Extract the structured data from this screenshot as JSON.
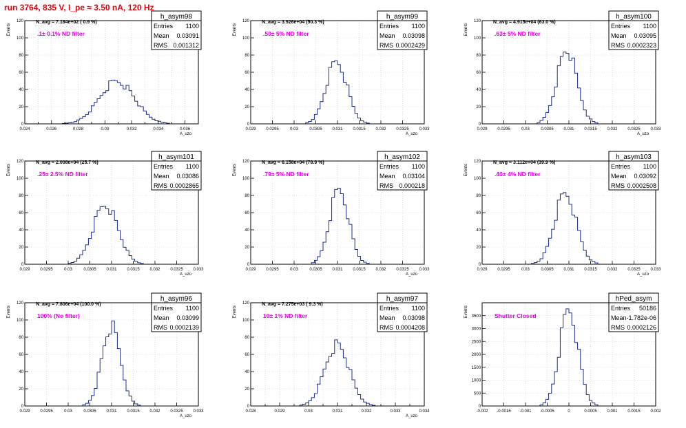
{
  "run_title": "run 3764,   835 V, I_pe ≈ 3.50 nA, 120 Hz",
  "colors": {
    "histogram": "#1c2c8c",
    "annotation": "#e000e0",
    "run_title": "#e8000b",
    "grid": "#c8c8c8"
  },
  "chart_data": [
    {
      "type": "bar",
      "hist_name": "h_asym98",
      "ylabel": "Events",
      "xlabel": "A_uzo",
      "ylim": [
        0,
        120
      ],
      "xlim": [
        0.024,
        0.037
      ],
      "xticks": [
        0.024,
        0.025,
        0.026,
        0.027,
        0.028,
        0.029,
        0.03,
        0.031,
        0.032,
        0.033,
        0.034,
        0.035,
        0.036
      ],
      "xtick_labels": {
        "0.024": "0.024",
        "0.026": "0.026",
        "0.028": "0.028",
        "0.03": "0.03",
        "0.032": "0.032",
        "0.034": "0.034",
        "0.036": "0.036"
      },
      "yticks": [
        0,
        20,
        40,
        60,
        80,
        100,
        120
      ],
      "navg": "N_avg = 7.184e+02 ( 0.9 %)",
      "annotation": ".1± 0.1% ND filter",
      "stats": {
        "entries": "1100",
        "mean": "0.03091",
        "rms": "0.001312"
      },
      "mean": 0.03091,
      "sigma": 0.001312,
      "peak": 50,
      "grid": true
    },
    {
      "type": "bar",
      "hist_name": "h_asym99",
      "ylabel": "Events",
      "xlabel": "A_uzo",
      "ylim": [
        0,
        120
      ],
      "xlim": [
        0.029,
        0.033
      ],
      "xticks": [
        0.029,
        0.0295,
        0.03,
        0.0305,
        0.031,
        0.0315,
        0.032,
        0.0325,
        0.033
      ],
      "xtick_labels": {
        "0.029": "0.029",
        "0.0295": "0.0295",
        "0.03": "0.03",
        "0.0305": "0.0305",
        "0.031": "0.031",
        "0.0315": "0.0315",
        "0.032": "0.032",
        "0.0325": "0.0325",
        "0.033": "0.033"
      },
      "yticks": [
        0,
        20,
        40,
        60,
        80,
        100,
        120
      ],
      "navg": "N_avg = 3.926e+04 (50.3 %)",
      "annotation": ".50± 5% ND filter",
      "stats": {
        "entries": "1100",
        "mean": "0.03098",
        "rms": "0.0002429"
      },
      "mean": 0.03098,
      "sigma": 0.0002429,
      "peak": 72,
      "grid": true
    },
    {
      "type": "bar",
      "hist_name": "h_asym100",
      "ylabel": "Events",
      "xlabel": "A_uzo",
      "ylim": [
        0,
        120
      ],
      "xlim": [
        0.029,
        0.033
      ],
      "xticks": [
        0.029,
        0.0295,
        0.03,
        0.0305,
        0.031,
        0.0315,
        0.032,
        0.0325,
        0.033
      ],
      "xtick_labels": {
        "0.029": "0.029",
        "0.0295": "0.0295",
        "0.03": "0.03",
        "0.0305": "0.0305",
        "0.031": "0.031",
        "0.0315": "0.0315",
        "0.032": "0.032",
        "0.0325": "0.0325",
        "0.033": "0.033"
      },
      "yticks": [
        0,
        20,
        40,
        60,
        80,
        100,
        120
      ],
      "navg": "N_avg = 4.915e+04 (63.0 %)",
      "annotation": ".63± 5% ND filter",
      "stats": {
        "entries": "1100",
        "mean": "0.03095",
        "rms": "0.0002323"
      },
      "mean": 0.03095,
      "sigma": 0.0002323,
      "peak": 86,
      "grid": true
    },
    {
      "type": "bar",
      "hist_name": "h_asym101",
      "ylabel": "Events",
      "xlabel": "A_uzo",
      "ylim": [
        0,
        120
      ],
      "xlim": [
        0.029,
        0.033
      ],
      "xticks": [
        0.029,
        0.0295,
        0.03,
        0.0305,
        0.031,
        0.0315,
        0.032,
        0.0325,
        0.033
      ],
      "xtick_labels": {
        "0.029": "0.029",
        "0.0295": "0.0295",
        "0.03": "0.03",
        "0.0305": "0.0305",
        "0.031": "0.031",
        "0.0315": "0.0315",
        "0.032": "0.032",
        "0.0325": "0.0325",
        "0.033": "0.033"
      },
      "yticks": [
        0,
        20,
        40,
        60,
        80,
        100,
        120
      ],
      "navg": "N_avg = 2.008e+04 (25.7 %)",
      "annotation": ".25± 2.5% ND filter",
      "stats": {
        "entries": "1100",
        "mean": "0.03086",
        "rms": "0.0002865"
      },
      "mean": 0.03086,
      "sigma": 0.0002865,
      "peak": 70,
      "grid": true
    },
    {
      "type": "bar",
      "hist_name": "h_asym102",
      "ylabel": "Events",
      "xlabel": "A_uzo",
      "ylim": [
        0,
        120
      ],
      "xlim": [
        0.029,
        0.033
      ],
      "xticks": [
        0.029,
        0.0295,
        0.03,
        0.0305,
        0.031,
        0.0315,
        0.032,
        0.0325,
        0.033
      ],
      "xtick_labels": {
        "0.029": "0.029",
        "0.0295": "0.0295",
        "0.03": "0.03",
        "0.0305": "0.0305",
        "0.031": "0.031",
        "0.0315": "0.0315",
        "0.032": "0.032",
        "0.0325": "0.0325",
        "0.033": "0.033"
      },
      "yticks": [
        0,
        20,
        40,
        60,
        80,
        100,
        120
      ],
      "navg": "N_avg = 6.158e+04 (78.9 %)",
      "annotation": ".79± 5% ND filter",
      "stats": {
        "entries": "1100",
        "mean": "0.03104",
        "rms": "0.000218"
      },
      "mean": 0.03104,
      "sigma": 0.000218,
      "peak": 88,
      "grid": true
    },
    {
      "type": "bar",
      "hist_name": "h_asym103",
      "ylabel": "Events",
      "xlabel": "A_uzo",
      "ylim": [
        0,
        120
      ],
      "xlim": [
        0.029,
        0.033
      ],
      "xticks": [
        0.029,
        0.0295,
        0.03,
        0.0305,
        0.031,
        0.0315,
        0.032,
        0.0325,
        0.033
      ],
      "xtick_labels": {
        "0.029": "0.029",
        "0.0295": "0.0295",
        "0.03": "0.03",
        "0.0305": "0.0305",
        "0.031": "0.031",
        "0.0315": "0.0315",
        "0.032": "0.032",
        "0.0325": "0.0325",
        "0.033": "0.033"
      },
      "yticks": [
        0,
        20,
        40,
        60,
        80,
        100,
        120
      ],
      "navg": "N_avg = 3.112e+04 (39.9 %)",
      "annotation": ".40± 4% ND filter",
      "stats": {
        "entries": "1100",
        "mean": "0.03092",
        "rms": "0.0002508"
      },
      "mean": 0.03092,
      "sigma": 0.0002508,
      "peak": 82,
      "grid": true
    },
    {
      "type": "bar",
      "hist_name": "h_asym96",
      "ylabel": "Events",
      "xlabel": "A_uzo",
      "ylim": [
        0,
        120
      ],
      "xlim": [
        0.029,
        0.033
      ],
      "xticks": [
        0.029,
        0.0295,
        0.03,
        0.0305,
        0.031,
        0.0315,
        0.032,
        0.0325,
        0.033
      ],
      "xtick_labels": {
        "0.029": "0.029",
        "0.0295": "0.0295",
        "0.03": "0.03",
        "0.0305": "0.0305",
        "0.031": "0.031",
        "0.0315": "0.0315",
        "0.032": "0.032",
        "0.0325": "0.0325",
        "0.033": "0.033"
      },
      "yticks": [
        0,
        20,
        40,
        60,
        80,
        100,
        120
      ],
      "navg": "N_avg = 7.806e+04 (100.0 %)",
      "annotation": "100% (No filter)",
      "stats": {
        "entries": "1100",
        "mean": "0.03099",
        "rms": "0.0002139"
      },
      "mean": 0.03099,
      "sigma": 0.0002139,
      "peak": 92,
      "grid": true
    },
    {
      "type": "bar",
      "hist_name": "h_asym97",
      "ylabel": "Events",
      "xlabel": "A_uzo",
      "ylim": [
        0,
        120
      ],
      "xlim": [
        0.028,
        0.034
      ],
      "xticks": [
        0.028,
        0.0285,
        0.029,
        0.0295,
        0.03,
        0.0305,
        0.031,
        0.0315,
        0.032,
        0.0325,
        0.033,
        0.0335,
        0.034
      ],
      "xtick_labels": {
        "0.028": "0.028",
        "0.029": "0.029",
        "0.03": "0.03",
        "0.031": "0.031",
        "0.032": "0.032",
        "0.033": "0.033",
        "0.034": "0.034"
      },
      "yticks": [
        0,
        20,
        40,
        60,
        80,
        100,
        120
      ],
      "navg": "N_avg = 7.275e+03 ( 9.3 %)",
      "annotation": "10± 1% ND filter",
      "stats": {
        "entries": "1100",
        "mean": "0.03098",
        "rms": "0.0004208"
      },
      "mean": 0.03098,
      "sigma": 0.0004208,
      "peak": 72,
      "grid": true
    },
    {
      "type": "bar",
      "hist_name": "hPed_asym",
      "ylabel": "Events",
      "xlabel": "",
      "ylim": [
        0,
        4000
      ],
      "xlim": [
        -0.002,
        0.002
      ],
      "xticks": [
        -0.002,
        -0.0015,
        -0.001,
        -0.0005,
        0,
        0.0005,
        0.001,
        0.0015,
        0.002
      ],
      "xtick_labels": {
        "-0.002": "-0.002",
        "-0.0015": "-0.0015",
        "-0.001": "-0.001",
        "-0.0005": "-0.0005",
        "0": "0",
        "0.0005": "0.0005",
        "0.001": "0.001",
        "0.0015": "0.0015",
        "0.002": "0.002"
      },
      "yticks": [
        0,
        500,
        1000,
        1500,
        2000,
        2500,
        3000,
        3500
      ],
      "navg": "",
      "annotation": "Shutter Closed",
      "stats": {
        "entries": "50186",
        "mean": "-1.782e-06",
        "rms": "0.0002126"
      },
      "mean": -1.782e-06,
      "sigma": 0.0002126,
      "peak": 3780,
      "grid": true
    }
  ]
}
